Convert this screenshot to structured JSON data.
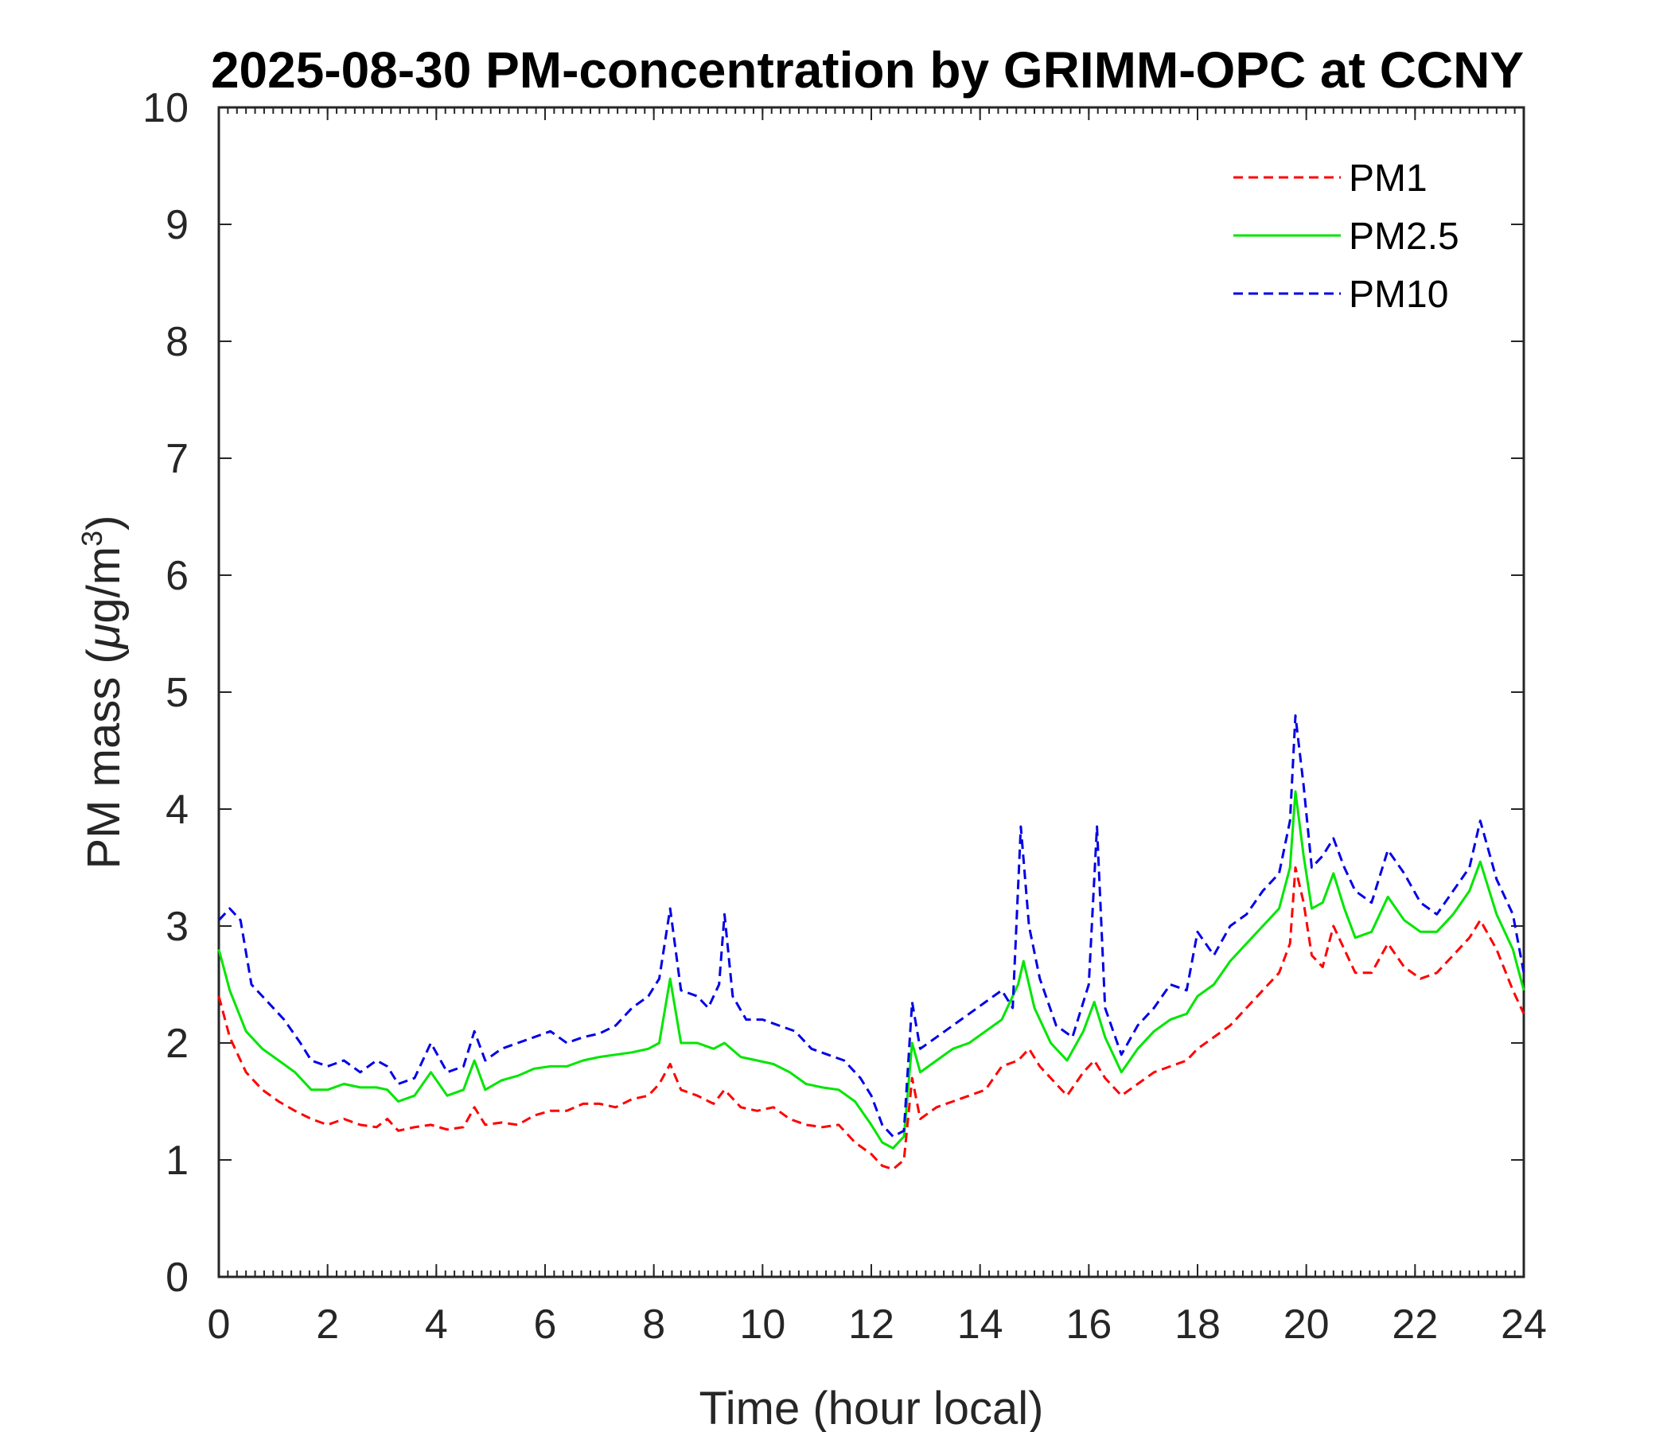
{
  "chart_data": {
    "type": "line",
    "title": "2025-08-30 PM-concentration by GRIMM-OPC at CCNY",
    "xlabel": "Time (hour local)",
    "ylabel_prefix": "PM mass (",
    "ylabel_mu": "μ",
    "ylabel_unit": "g/m",
    "ylabel_sup": "3",
    "ylabel_suffix": ")",
    "xlim": [
      0,
      24
    ],
    "ylim": [
      0,
      10
    ],
    "xticks": [
      0,
      2,
      4,
      6,
      8,
      10,
      12,
      14,
      16,
      18,
      20,
      22,
      24
    ],
    "yticks": [
      0,
      1,
      2,
      3,
      4,
      5,
      6,
      7,
      8,
      9,
      10
    ],
    "grid": false,
    "legend_position": "top-right",
    "series": [
      {
        "name": "PM1",
        "color": "#ff0000",
        "style": "dashed",
        "points": [
          [
            0,
            2.4
          ],
          [
            0.2,
            2.05
          ],
          [
            0.5,
            1.75
          ],
          [
            0.8,
            1.6
          ],
          [
            1.1,
            1.5
          ],
          [
            1.4,
            1.42
          ],
          [
            1.7,
            1.35
          ],
          [
            2.0,
            1.3
          ],
          [
            2.3,
            1.35
          ],
          [
            2.6,
            1.3
          ],
          [
            2.9,
            1.28
          ],
          [
            3.1,
            1.35
          ],
          [
            3.3,
            1.25
          ],
          [
            3.6,
            1.28
          ],
          [
            3.9,
            1.3
          ],
          [
            4.2,
            1.26
          ],
          [
            4.5,
            1.28
          ],
          [
            4.7,
            1.45
          ],
          [
            4.9,
            1.3
          ],
          [
            5.2,
            1.32
          ],
          [
            5.5,
            1.3
          ],
          [
            5.8,
            1.38
          ],
          [
            6.1,
            1.42
          ],
          [
            6.4,
            1.42
          ],
          [
            6.7,
            1.48
          ],
          [
            7.0,
            1.48
          ],
          [
            7.3,
            1.45
          ],
          [
            7.6,
            1.52
          ],
          [
            7.9,
            1.55
          ],
          [
            8.1,
            1.65
          ],
          [
            8.3,
            1.82
          ],
          [
            8.5,
            1.6
          ],
          [
            8.8,
            1.55
          ],
          [
            9.1,
            1.48
          ],
          [
            9.3,
            1.6
          ],
          [
            9.6,
            1.45
          ],
          [
            9.9,
            1.42
          ],
          [
            10.2,
            1.45
          ],
          [
            10.5,
            1.35
          ],
          [
            10.8,
            1.3
          ],
          [
            11.1,
            1.28
          ],
          [
            11.4,
            1.3
          ],
          [
            11.7,
            1.15
          ],
          [
            12.0,
            1.05
          ],
          [
            12.2,
            0.95
          ],
          [
            12.4,
            0.92
          ],
          [
            12.6,
            1.0
          ],
          [
            12.75,
            1.7
          ],
          [
            12.9,
            1.35
          ],
          [
            13.2,
            1.45
          ],
          [
            13.5,
            1.5
          ],
          [
            13.8,
            1.55
          ],
          [
            14.1,
            1.6
          ],
          [
            14.4,
            1.8
          ],
          [
            14.7,
            1.85
          ],
          [
            14.9,
            1.95
          ],
          [
            15.1,
            1.8
          ],
          [
            15.4,
            1.65
          ],
          [
            15.6,
            1.55
          ],
          [
            15.9,
            1.75
          ],
          [
            16.1,
            1.85
          ],
          [
            16.3,
            1.7
          ],
          [
            16.6,
            1.55
          ],
          [
            16.9,
            1.65
          ],
          [
            17.2,
            1.75
          ],
          [
            17.5,
            1.8
          ],
          [
            17.8,
            1.85
          ],
          [
            18.0,
            1.95
          ],
          [
            18.3,
            2.05
          ],
          [
            18.6,
            2.15
          ],
          [
            18.9,
            2.3
          ],
          [
            19.2,
            2.45
          ],
          [
            19.5,
            2.6
          ],
          [
            19.7,
            2.85
          ],
          [
            19.8,
            3.5
          ],
          [
            19.95,
            3.2
          ],
          [
            20.1,
            2.75
          ],
          [
            20.3,
            2.65
          ],
          [
            20.5,
            3.0
          ],
          [
            20.7,
            2.8
          ],
          [
            20.9,
            2.6
          ],
          [
            21.2,
            2.6
          ],
          [
            21.5,
            2.85
          ],
          [
            21.8,
            2.65
          ],
          [
            22.1,
            2.55
          ],
          [
            22.4,
            2.6
          ],
          [
            22.7,
            2.75
          ],
          [
            23.0,
            2.9
          ],
          [
            23.2,
            3.05
          ],
          [
            23.5,
            2.8
          ],
          [
            23.8,
            2.45
          ],
          [
            24.0,
            2.25
          ]
        ]
      },
      {
        "name": "PM2.5",
        "color": "#00e600",
        "style": "solid",
        "points": [
          [
            0,
            2.8
          ],
          [
            0.2,
            2.45
          ],
          [
            0.5,
            2.1
          ],
          [
            0.8,
            1.95
          ],
          [
            1.1,
            1.85
          ],
          [
            1.4,
            1.75
          ],
          [
            1.7,
            1.6
          ],
          [
            2.0,
            1.6
          ],
          [
            2.3,
            1.65
          ],
          [
            2.6,
            1.62
          ],
          [
            2.9,
            1.62
          ],
          [
            3.1,
            1.6
          ],
          [
            3.3,
            1.5
          ],
          [
            3.6,
            1.55
          ],
          [
            3.9,
            1.75
          ],
          [
            4.2,
            1.55
          ],
          [
            4.5,
            1.6
          ],
          [
            4.7,
            1.85
          ],
          [
            4.9,
            1.6
          ],
          [
            5.2,
            1.68
          ],
          [
            5.5,
            1.72
          ],
          [
            5.8,
            1.78
          ],
          [
            6.1,
            1.8
          ],
          [
            6.4,
            1.8
          ],
          [
            6.7,
            1.85
          ],
          [
            7.0,
            1.88
          ],
          [
            7.3,
            1.9
          ],
          [
            7.6,
            1.92
          ],
          [
            7.9,
            1.95
          ],
          [
            8.1,
            2.0
          ],
          [
            8.3,
            2.55
          ],
          [
            8.5,
            2.0
          ],
          [
            8.8,
            2.0
          ],
          [
            9.1,
            1.95
          ],
          [
            9.3,
            2.0
          ],
          [
            9.6,
            1.88
          ],
          [
            9.9,
            1.85
          ],
          [
            10.2,
            1.82
          ],
          [
            10.5,
            1.75
          ],
          [
            10.8,
            1.65
          ],
          [
            11.1,
            1.62
          ],
          [
            11.4,
            1.6
          ],
          [
            11.7,
            1.5
          ],
          [
            12.0,
            1.3
          ],
          [
            12.2,
            1.15
          ],
          [
            12.4,
            1.1
          ],
          [
            12.6,
            1.2
          ],
          [
            12.75,
            2.0
          ],
          [
            12.9,
            1.75
          ],
          [
            13.2,
            1.85
          ],
          [
            13.5,
            1.95
          ],
          [
            13.8,
            2.0
          ],
          [
            14.1,
            2.1
          ],
          [
            14.4,
            2.2
          ],
          [
            14.7,
            2.5
          ],
          [
            14.8,
            2.7
          ],
          [
            15.0,
            2.3
          ],
          [
            15.3,
            2.0
          ],
          [
            15.6,
            1.85
          ],
          [
            15.9,
            2.1
          ],
          [
            16.1,
            2.35
          ],
          [
            16.3,
            2.05
          ],
          [
            16.6,
            1.75
          ],
          [
            16.9,
            1.95
          ],
          [
            17.2,
            2.1
          ],
          [
            17.5,
            2.2
          ],
          [
            17.8,
            2.25
          ],
          [
            18.0,
            2.4
          ],
          [
            18.3,
            2.5
          ],
          [
            18.6,
            2.7
          ],
          [
            18.9,
            2.85
          ],
          [
            19.2,
            3.0
          ],
          [
            19.5,
            3.15
          ],
          [
            19.7,
            3.5
          ],
          [
            19.8,
            4.15
          ],
          [
            19.95,
            3.6
          ],
          [
            20.1,
            3.15
          ],
          [
            20.3,
            3.2
          ],
          [
            20.5,
            3.45
          ],
          [
            20.7,
            3.15
          ],
          [
            20.9,
            2.9
          ],
          [
            21.2,
            2.95
          ],
          [
            21.5,
            3.25
          ],
          [
            21.8,
            3.05
          ],
          [
            22.1,
            2.95
          ],
          [
            22.4,
            2.95
          ],
          [
            22.7,
            3.1
          ],
          [
            23.0,
            3.3
          ],
          [
            23.2,
            3.55
          ],
          [
            23.5,
            3.1
          ],
          [
            23.8,
            2.8
          ],
          [
            24.0,
            2.45
          ]
        ]
      },
      {
        "name": "PM10",
        "color": "#0000e6",
        "style": "dashed",
        "points": [
          [
            0,
            3.05
          ],
          [
            0.2,
            3.15
          ],
          [
            0.4,
            3.05
          ],
          [
            0.6,
            2.5
          ],
          [
            0.9,
            2.35
          ],
          [
            1.2,
            2.2
          ],
          [
            1.5,
            2.0
          ],
          [
            1.7,
            1.85
          ],
          [
            2.0,
            1.8
          ],
          [
            2.3,
            1.85
          ],
          [
            2.6,
            1.75
          ],
          [
            2.9,
            1.85
          ],
          [
            3.1,
            1.8
          ],
          [
            3.3,
            1.65
          ],
          [
            3.6,
            1.7
          ],
          [
            3.9,
            2.0
          ],
          [
            4.2,
            1.75
          ],
          [
            4.5,
            1.8
          ],
          [
            4.7,
            2.1
          ],
          [
            4.9,
            1.85
          ],
          [
            5.2,
            1.95
          ],
          [
            5.5,
            2.0
          ],
          [
            5.8,
            2.05
          ],
          [
            6.1,
            2.1
          ],
          [
            6.4,
            2.0
          ],
          [
            6.7,
            2.05
          ],
          [
            7.0,
            2.08
          ],
          [
            7.3,
            2.15
          ],
          [
            7.6,
            2.3
          ],
          [
            7.9,
            2.4
          ],
          [
            8.1,
            2.55
          ],
          [
            8.3,
            3.15
          ],
          [
            8.5,
            2.45
          ],
          [
            8.8,
            2.4
          ],
          [
            9.0,
            2.3
          ],
          [
            9.2,
            2.5
          ],
          [
            9.3,
            3.1
          ],
          [
            9.45,
            2.4
          ],
          [
            9.7,
            2.2
          ],
          [
            10.0,
            2.2
          ],
          [
            10.3,
            2.15
          ],
          [
            10.6,
            2.1
          ],
          [
            10.9,
            1.95
          ],
          [
            11.2,
            1.9
          ],
          [
            11.5,
            1.85
          ],
          [
            11.8,
            1.7
          ],
          [
            12.0,
            1.55
          ],
          [
            12.2,
            1.3
          ],
          [
            12.4,
            1.2
          ],
          [
            12.6,
            1.25
          ],
          [
            12.75,
            2.35
          ],
          [
            12.9,
            1.95
          ],
          [
            13.2,
            2.05
          ],
          [
            13.5,
            2.15
          ],
          [
            13.8,
            2.25
          ],
          [
            14.1,
            2.35
          ],
          [
            14.4,
            2.45
          ],
          [
            14.6,
            2.3
          ],
          [
            14.75,
            3.85
          ],
          [
            14.9,
            3.0
          ],
          [
            15.1,
            2.55
          ],
          [
            15.4,
            2.15
          ],
          [
            15.7,
            2.05
          ],
          [
            16.0,
            2.5
          ],
          [
            16.15,
            3.85
          ],
          [
            16.3,
            2.3
          ],
          [
            16.6,
            1.9
          ],
          [
            16.9,
            2.15
          ],
          [
            17.2,
            2.3
          ],
          [
            17.5,
            2.5
          ],
          [
            17.8,
            2.45
          ],
          [
            18.0,
            2.95
          ],
          [
            18.3,
            2.75
          ],
          [
            18.6,
            3.0
          ],
          [
            18.9,
            3.1
          ],
          [
            19.2,
            3.3
          ],
          [
            19.5,
            3.45
          ],
          [
            19.7,
            3.9
          ],
          [
            19.8,
            4.8
          ],
          [
            19.95,
            4.2
          ],
          [
            20.1,
            3.5
          ],
          [
            20.3,
            3.6
          ],
          [
            20.5,
            3.75
          ],
          [
            20.7,
            3.5
          ],
          [
            20.9,
            3.3
          ],
          [
            21.2,
            3.2
          ],
          [
            21.5,
            3.65
          ],
          [
            21.8,
            3.45
          ],
          [
            22.1,
            3.2
          ],
          [
            22.4,
            3.1
          ],
          [
            22.7,
            3.3
          ],
          [
            23.0,
            3.5
          ],
          [
            23.2,
            3.9
          ],
          [
            23.5,
            3.4
          ],
          [
            23.8,
            3.1
          ],
          [
            24.0,
            2.6
          ]
        ]
      }
    ]
  }
}
